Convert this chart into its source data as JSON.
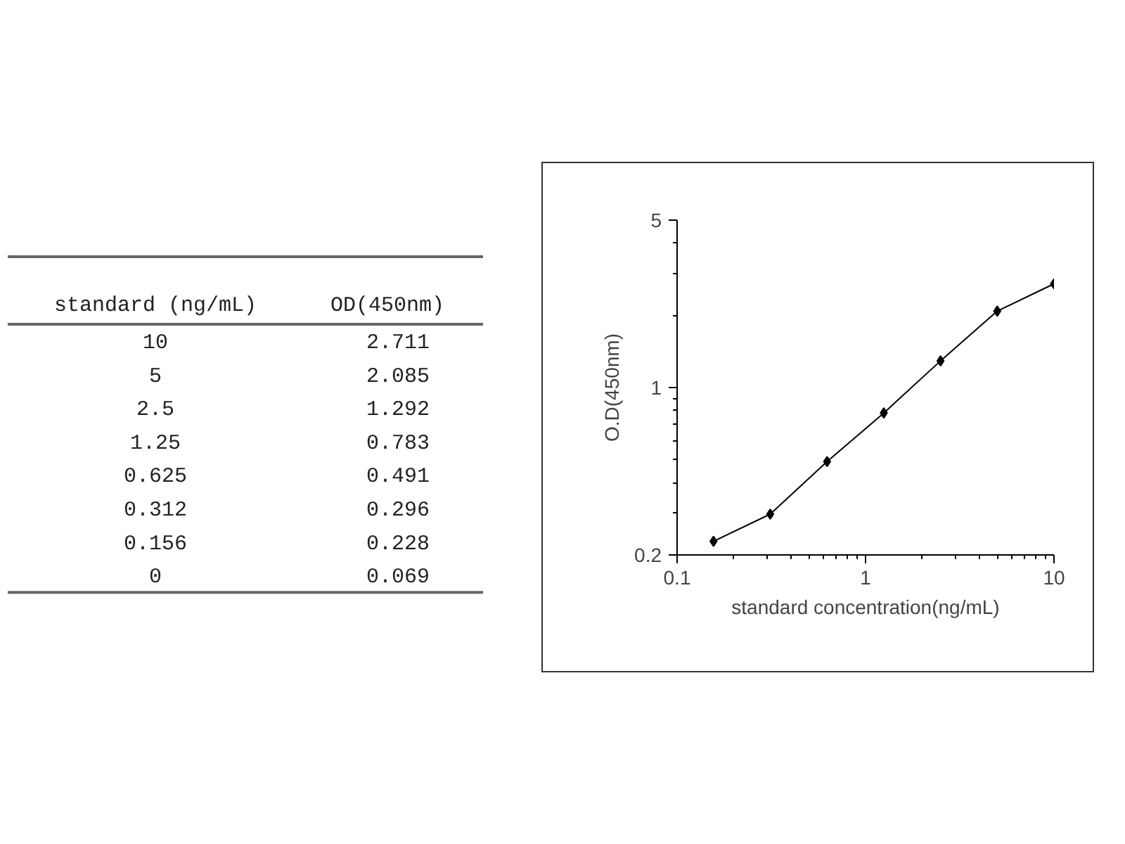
{
  "chart_data": [
    {
      "type": "other",
      "annotations": [
        "standard (ng/mL)",
        "OD(450nm)",
        "10",
        "2.711",
        "5",
        "2.085",
        "2.5",
        "1.292",
        "1.25",
        "0.783",
        "0.625",
        "0.491",
        "0.312",
        "0.296",
        "0.156",
        "0.228",
        "0",
        "0.069"
      ]
    },
    {
      "type": "line",
      "x": [
        0.156,
        0.312,
        0.625,
        1.25,
        2.5,
        5,
        10
      ],
      "values": [
        0.228,
        0.296,
        0.491,
        0.783,
        1.292,
        2.085,
        2.711
      ],
      "color": "#000000",
      "marker": "diamond",
      "line_style": "solid",
      "log": "xy",
      "xlim": [
        0.1,
        10
      ],
      "ylim": [
        0.2,
        5
      ],
      "xticks": [
        0.1,
        1,
        10
      ],
      "yticks": [
        0.2,
        1,
        5
      ],
      "xlabel": "standard concentration(ng/mL)",
      "ylabel": "O.D(450nm)",
      "grid": false
    }
  ]
}
